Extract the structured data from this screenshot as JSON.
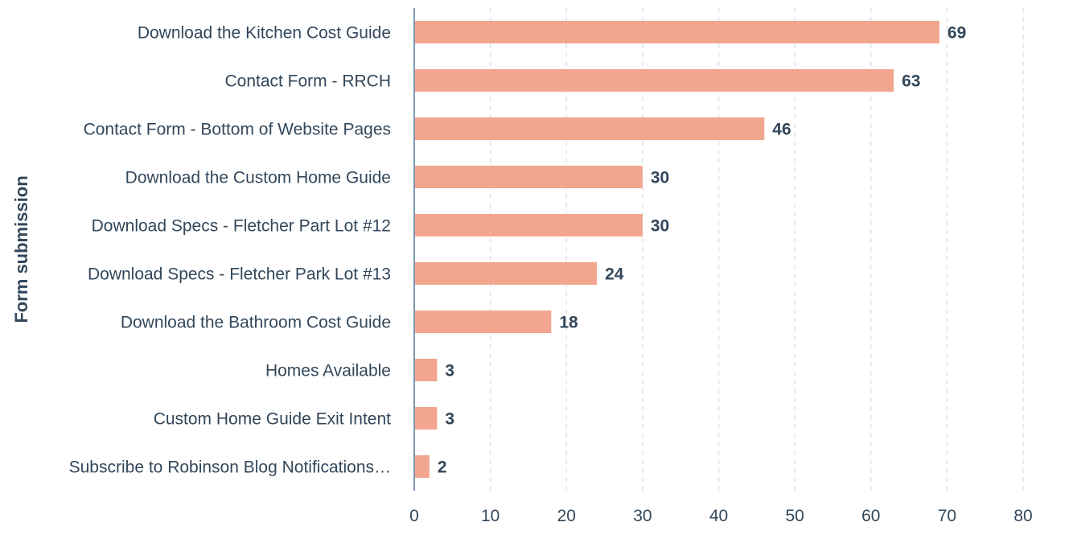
{
  "chart_data": {
    "type": "bar",
    "orientation": "horizontal",
    "ylabel": "Form submission",
    "xlabel": "",
    "xlim": [
      0,
      80
    ],
    "xticks": [
      0,
      10,
      20,
      30,
      40,
      50,
      60,
      70,
      80
    ],
    "grid": true,
    "bar_color": "#f2a68f",
    "categories": [
      "Download the Kitchen Cost Guide",
      "Contact Form - RRCH",
      "Contact Form - Bottom of Website Pages",
      "Download the Custom Home Guide",
      "Download Specs - Fletcher Part Lot #12",
      "Download Specs - Fletcher Park Lot #13",
      "Download the Bathroom Cost Guide",
      "Homes Available",
      "Custom Home Guide Exit Intent",
      "Subscribe to Robinson Blog Notifications…"
    ],
    "values": [
      69,
      63,
      46,
      30,
      30,
      24,
      18,
      3,
      3,
      2
    ]
  }
}
